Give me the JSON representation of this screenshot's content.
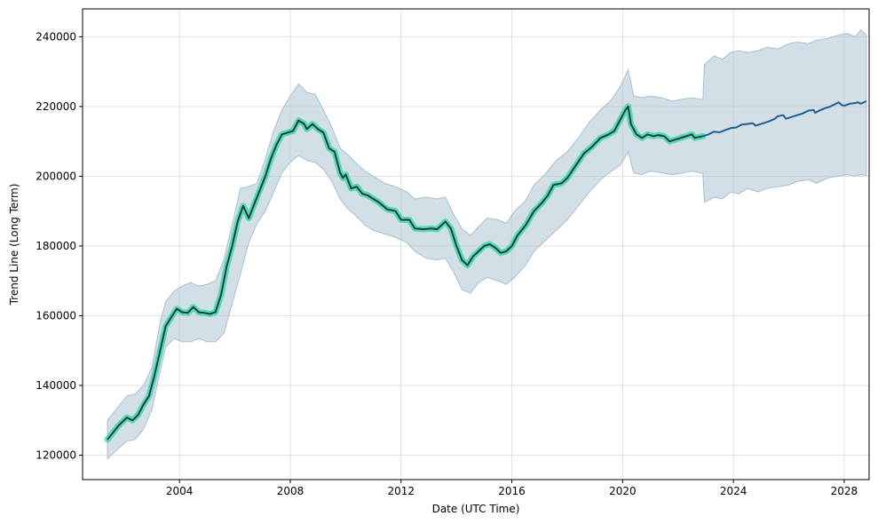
{
  "chart_data": {
    "type": "line",
    "title": "",
    "xlabel": "Date (UTC Time)",
    "ylabel": "Trend Line (Long Term)",
    "x_ticks": [
      "2004",
      "2008",
      "2012",
      "2016",
      "2020",
      "2024",
      "2028"
    ],
    "y_ticks": [
      "120000",
      "140000",
      "160000",
      "180000",
      "200000",
      "220000",
      "240000"
    ],
    "xlim": [
      2000.5,
      2028.9
    ],
    "ylim": [
      113000,
      248000
    ],
    "grid": true,
    "colors": {
      "history_line": "#1e3d3d",
      "history_glow": "#40d9b0",
      "forecast_line": "#1f5f8b",
      "band_fill": "#a7c0cf"
    },
    "series": [
      {
        "values_role": "history",
        "points": [
          [
            2001.4,
            124500
          ],
          [
            2001.8,
            128500
          ],
          [
            2002.1,
            130800
          ],
          [
            2002.3,
            130000
          ],
          [
            2002.5,
            131500
          ],
          [
            2002.7,
            134500
          ],
          [
            2002.9,
            137000
          ],
          [
            2003.1,
            143000
          ],
          [
            2003.3,
            150000
          ],
          [
            2003.5,
            157000
          ],
          [
            2003.7,
            159500
          ],
          [
            2003.9,
            162000
          ],
          [
            2004.1,
            161000
          ],
          [
            2004.3,
            160800
          ],
          [
            2004.5,
            162500
          ],
          [
            2004.7,
            161000
          ],
          [
            2004.9,
            160800
          ],
          [
            2005.1,
            160500
          ],
          [
            2005.3,
            161000
          ],
          [
            2005.5,
            166000
          ],
          [
            2005.7,
            174000
          ],
          [
            2005.9,
            180000
          ],
          [
            2006.1,
            187000
          ],
          [
            2006.3,
            191500
          ],
          [
            2006.5,
            188000
          ],
          [
            2006.7,
            192000
          ],
          [
            2006.9,
            196000
          ],
          [
            2007.1,
            200000
          ],
          [
            2007.3,
            205000
          ],
          [
            2007.5,
            209000
          ],
          [
            2007.7,
            212000
          ],
          [
            2007.9,
            212500
          ],
          [
            2008.1,
            213000
          ],
          [
            2008.3,
            216000
          ],
          [
            2008.5,
            215000
          ],
          [
            2008.6,
            213500
          ],
          [
            2008.8,
            215000
          ],
          [
            2009.0,
            213500
          ],
          [
            2009.2,
            212500
          ],
          [
            2009.4,
            208000
          ],
          [
            2009.6,
            207000
          ],
          [
            2009.8,
            201000
          ],
          [
            2009.9,
            199500
          ],
          [
            2010.0,
            200500
          ],
          [
            2010.2,
            196500
          ],
          [
            2010.4,
            197000
          ],
          [
            2010.6,
            195000
          ],
          [
            2010.8,
            194500
          ],
          [
            2011.0,
            193500
          ],
          [
            2011.2,
            192500
          ],
          [
            2011.5,
            190500
          ],
          [
            2011.8,
            190000
          ],
          [
            2012.0,
            187500
          ],
          [
            2012.3,
            187500
          ],
          [
            2012.5,
            185000
          ],
          [
            2012.8,
            184800
          ],
          [
            2013.1,
            185000
          ],
          [
            2013.3,
            184800
          ],
          [
            2013.6,
            187000
          ],
          [
            2013.8,
            185000
          ],
          [
            2014.0,
            180000
          ],
          [
            2014.2,
            176000
          ],
          [
            2014.4,
            174500
          ],
          [
            2014.6,
            177000
          ],
          [
            2014.8,
            178500
          ],
          [
            2015.0,
            180000
          ],
          [
            2015.2,
            180500
          ],
          [
            2015.4,
            179500
          ],
          [
            2015.6,
            178000
          ],
          [
            2015.8,
            178500
          ],
          [
            2016.0,
            180000
          ],
          [
            2016.2,
            183000
          ],
          [
            2016.5,
            186000
          ],
          [
            2016.8,
            190000
          ],
          [
            2017.1,
            192500
          ],
          [
            2017.3,
            194500
          ],
          [
            2017.5,
            197500
          ],
          [
            2017.8,
            198000
          ],
          [
            2018.0,
            199500
          ],
          [
            2018.3,
            203000
          ],
          [
            2018.6,
            206500
          ],
          [
            2018.9,
            208500
          ],
          [
            2019.2,
            211000
          ],
          [
            2019.5,
            212000
          ],
          [
            2019.7,
            213000
          ],
          [
            2019.9,
            216000
          ],
          [
            2020.1,
            219000
          ],
          [
            2020.2,
            220000
          ],
          [
            2020.3,
            215000
          ],
          [
            2020.5,
            212000
          ],
          [
            2020.7,
            211000
          ],
          [
            2020.9,
            212000
          ],
          [
            2021.1,
            211500
          ],
          [
            2021.3,
            211800
          ],
          [
            2021.5,
            211500
          ],
          [
            2021.7,
            210000
          ],
          [
            2021.9,
            210500
          ],
          [
            2022.1,
            211000
          ],
          [
            2022.3,
            211500
          ],
          [
            2022.5,
            212000
          ],
          [
            2022.6,
            211000
          ],
          [
            2022.9,
            211500
          ]
        ]
      },
      {
        "values_role": "forecast",
        "points": [
          [
            2022.9,
            211500
          ],
          [
            2023.1,
            212000
          ],
          [
            2023.3,
            212800
          ],
          [
            2023.5,
            212600
          ],
          [
            2023.7,
            213200
          ],
          [
            2023.9,
            213800
          ],
          [
            2024.1,
            214000
          ],
          [
            2024.3,
            214800
          ],
          [
            2024.5,
            215000
          ],
          [
            2024.7,
            215200
          ],
          [
            2024.8,
            214500
          ],
          [
            2025.0,
            215000
          ],
          [
            2025.3,
            215800
          ],
          [
            2025.5,
            216500
          ],
          [
            2025.6,
            217200
          ],
          [
            2025.8,
            217500
          ],
          [
            2025.9,
            216500
          ],
          [
            2026.1,
            217000
          ],
          [
            2026.3,
            217500
          ],
          [
            2026.5,
            218000
          ],
          [
            2026.7,
            218800
          ],
          [
            2026.9,
            219000
          ],
          [
            2026.95,
            218200
          ],
          [
            2027.1,
            218800
          ],
          [
            2027.3,
            219500
          ],
          [
            2027.5,
            220000
          ],
          [
            2027.7,
            220800
          ],
          [
            2027.8,
            221200
          ],
          [
            2027.9,
            220500
          ],
          [
            2028.0,
            220200
          ],
          [
            2028.2,
            220800
          ],
          [
            2028.4,
            221000
          ],
          [
            2028.5,
            221200
          ],
          [
            2028.6,
            220800
          ],
          [
            2028.8,
            221500
          ]
        ]
      }
    ],
    "band": {
      "upper": [
        [
          2001.4,
          130000
        ],
        [
          2001.8,
          134000
        ],
        [
          2002.1,
          137000
        ],
        [
          2002.4,
          137500
        ],
        [
          2002.7,
          140000
        ],
        [
          2003.0,
          145000
        ],
        [
          2003.3,
          158000
        ],
        [
          2003.5,
          164000
        ],
        [
          2003.8,
          167000
        ],
        [
          2004.1,
          168500
        ],
        [
          2004.4,
          169500
        ],
        [
          2004.7,
          168500
        ],
        [
          2005.0,
          169000
        ],
        [
          2005.3,
          170000
        ],
        [
          2005.6,
          176000
        ],
        [
          2005.9,
          186000
        ],
        [
          2006.2,
          196500
        ],
        [
          2006.5,
          197000
        ],
        [
          2006.8,
          198000
        ],
        [
          2007.1,
          205000
        ],
        [
          2007.4,
          213000
        ],
        [
          2007.7,
          219000
        ],
        [
          2008.0,
          223000
        ],
        [
          2008.3,
          226500
        ],
        [
          2008.6,
          224000
        ],
        [
          2008.9,
          223500
        ],
        [
          2009.2,
          219000
        ],
        [
          2009.5,
          214000
        ],
        [
          2009.8,
          208000
        ],
        [
          2010.1,
          206000
        ],
        [
          2010.4,
          203500
        ],
        [
          2010.7,
          201500
        ],
        [
          2011.0,
          200000
        ],
        [
          2011.4,
          198000
        ],
        [
          2011.8,
          197000
        ],
        [
          2012.2,
          195500
        ],
        [
          2012.5,
          193500
        ],
        [
          2012.9,
          194000
        ],
        [
          2013.3,
          193500
        ],
        [
          2013.6,
          194000
        ],
        [
          2013.9,
          189000
        ],
        [
          2014.2,
          185000
        ],
        [
          2014.5,
          183000
        ],
        [
          2014.8,
          185500
        ],
        [
          2015.1,
          188000
        ],
        [
          2015.5,
          187500
        ],
        [
          2015.8,
          186500
        ],
        [
          2016.1,
          190000
        ],
        [
          2016.5,
          193000
        ],
        [
          2016.8,
          197500
        ],
        [
          2017.2,
          200500
        ],
        [
          2017.6,
          204500
        ],
        [
          2018.0,
          207000
        ],
        [
          2018.4,
          211000
        ],
        [
          2018.8,
          215500
        ],
        [
          2019.2,
          219000
        ],
        [
          2019.6,
          222000
        ],
        [
          2019.9,
          225500
        ],
        [
          2020.2,
          230500
        ],
        [
          2020.4,
          223000
        ],
        [
          2020.7,
          222500
        ],
        [
          2021.0,
          223000
        ],
        [
          2021.4,
          222500
        ],
        [
          2021.8,
          221500
        ],
        [
          2022.1,
          222000
        ],
        [
          2022.5,
          222500
        ],
        [
          2022.9,
          222000
        ],
        [
          2022.95,
          232000
        ],
        [
          2023.3,
          234500
        ],
        [
          2023.6,
          233500
        ],
        [
          2023.9,
          235500
        ],
        [
          2024.2,
          236000
        ],
        [
          2024.5,
          235500
        ],
        [
          2024.9,
          236000
        ],
        [
          2025.2,
          237000
        ],
        [
          2025.6,
          236500
        ],
        [
          2026.0,
          238000
        ],
        [
          2026.3,
          238500
        ],
        [
          2026.7,
          238000
        ],
        [
          2027.0,
          239000
        ],
        [
          2027.4,
          239500
        ],
        [
          2027.8,
          240500
        ],
        [
          2028.1,
          241000
        ],
        [
          2028.4,
          240000
        ],
        [
          2028.6,
          242000
        ],
        [
          2028.8,
          240500
        ]
      ],
      "lower": [
        [
          2001.4,
          119000
        ],
        [
          2001.8,
          122000
        ],
        [
          2002.1,
          124000
        ],
        [
          2002.4,
          124500
        ],
        [
          2002.7,
          127500
        ],
        [
          2003.0,
          133000
        ],
        [
          2003.3,
          144000
        ],
        [
          2003.5,
          151000
        ],
        [
          2003.8,
          153500
        ],
        [
          2004.1,
          152500
        ],
        [
          2004.4,
          152500
        ],
        [
          2004.7,
          153500
        ],
        [
          2005.0,
          152500
        ],
        [
          2005.3,
          152500
        ],
        [
          2005.6,
          155000
        ],
        [
          2005.9,
          163500
        ],
        [
          2006.2,
          172000
        ],
        [
          2006.5,
          181000
        ],
        [
          2006.8,
          186500
        ],
        [
          2007.1,
          190000
        ],
        [
          2007.4,
          195500
        ],
        [
          2007.7,
          201000
        ],
        [
          2008.0,
          204000
        ],
        [
          2008.3,
          206000
        ],
        [
          2008.6,
          204500
        ],
        [
          2008.9,
          204000
        ],
        [
          2009.2,
          202000
        ],
        [
          2009.5,
          198500
        ],
        [
          2009.8,
          193500
        ],
        [
          2010.1,
          190500
        ],
        [
          2010.4,
          188500
        ],
        [
          2010.7,
          186000
        ],
        [
          2011.0,
          184500
        ],
        [
          2011.4,
          183500
        ],
        [
          2011.8,
          182500
        ],
        [
          2012.2,
          181000
        ],
        [
          2012.5,
          178500
        ],
        [
          2012.9,
          176500
        ],
        [
          2013.3,
          176000
        ],
        [
          2013.6,
          176500
        ],
        [
          2013.9,
          172500
        ],
        [
          2014.2,
          167500
        ],
        [
          2014.5,
          166500
        ],
        [
          2014.8,
          169500
        ],
        [
          2015.1,
          171000
        ],
        [
          2015.5,
          170000
        ],
        [
          2015.8,
          169000
        ],
        [
          2016.1,
          171000
        ],
        [
          2016.5,
          174500
        ],
        [
          2016.8,
          178500
        ],
        [
          2017.2,
          181500
        ],
        [
          2017.6,
          184500
        ],
        [
          2018.0,
          187500
        ],
        [
          2018.4,
          191500
        ],
        [
          2018.8,
          195500
        ],
        [
          2019.2,
          199000
        ],
        [
          2019.6,
          201500
        ],
        [
          2019.9,
          203000
        ],
        [
          2020.2,
          207000
        ],
        [
          2020.4,
          201000
        ],
        [
          2020.7,
          200500
        ],
        [
          2021.0,
          201500
        ],
        [
          2021.4,
          201000
        ],
        [
          2021.8,
          200500
        ],
        [
          2022.1,
          200800
        ],
        [
          2022.5,
          201500
        ],
        [
          2022.9,
          200800
        ],
        [
          2022.95,
          192500
        ],
        [
          2023.3,
          194000
        ],
        [
          2023.6,
          193500
        ],
        [
          2023.9,
          195500
        ],
        [
          2024.2,
          195000
        ],
        [
          2024.5,
          196500
        ],
        [
          2024.9,
          195500
        ],
        [
          2025.2,
          196500
        ],
        [
          2025.6,
          197000
        ],
        [
          2026.0,
          197500
        ],
        [
          2026.3,
          198500
        ],
        [
          2026.7,
          199000
        ],
        [
          2027.0,
          198000
        ],
        [
          2027.4,
          199500
        ],
        [
          2027.8,
          200000
        ],
        [
          2028.1,
          200500
        ],
        [
          2028.4,
          200000
        ],
        [
          2028.6,
          200500
        ],
        [
          2028.8,
          200200
        ]
      ]
    }
  }
}
